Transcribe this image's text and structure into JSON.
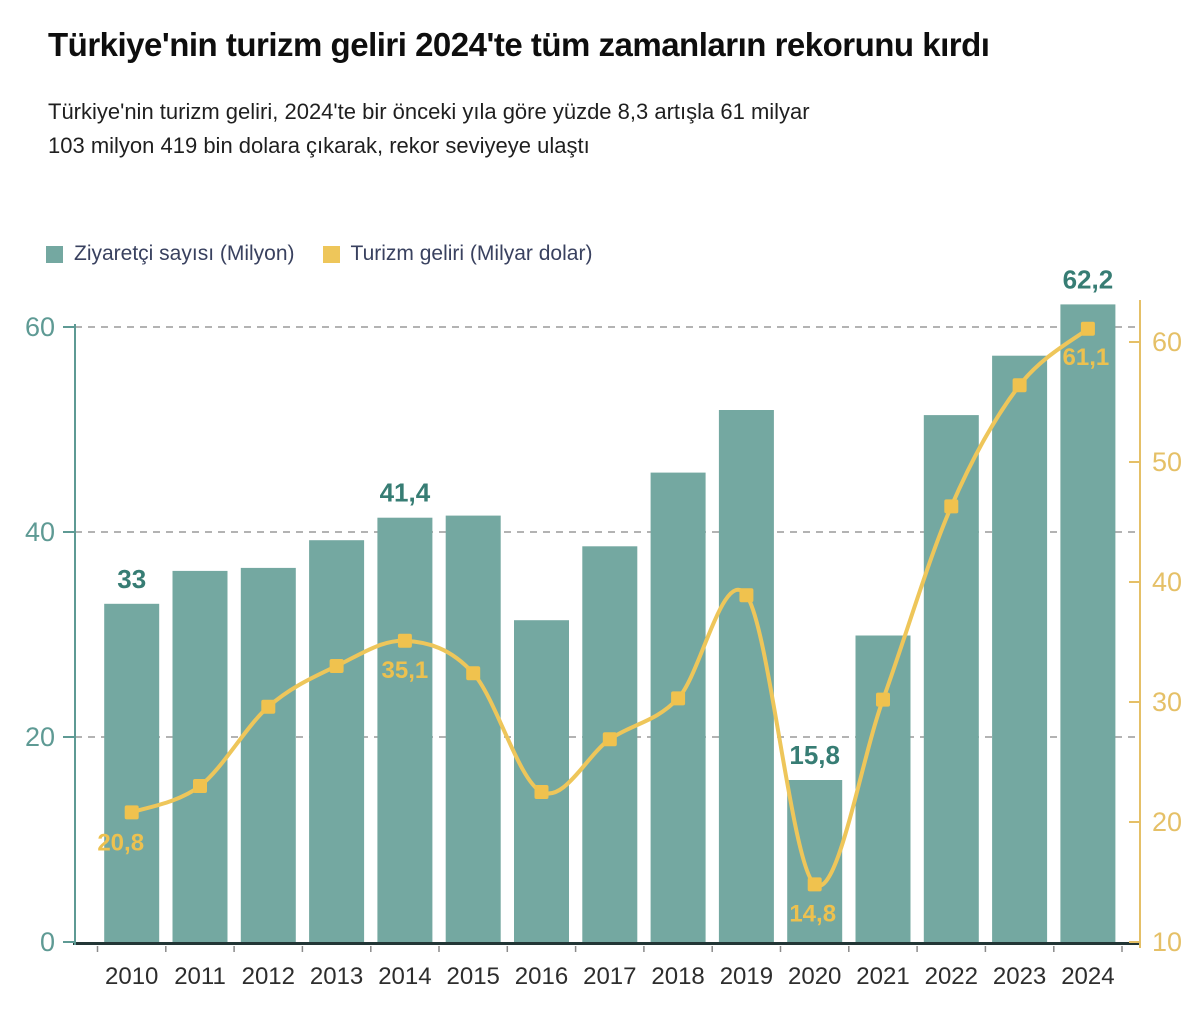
{
  "header": {
    "title": "Türkiye'nin turizm geliri 2024'te tüm zamanların rekorunu kırdı",
    "subtitle": "Türkiye'nin turizm geliri, 2024'te bir önceki yıla göre yüzde 8,3 artışla 61 milyar\n103 milyon 419 bin dolara çıkarak, rekor seviyeye ulaştı"
  },
  "legend": {
    "items": [
      {
        "label": "Ziyaretçi sayısı (Milyon)",
        "swatch": "bar"
      },
      {
        "label": "Turizm geliri (Milyar dolar)",
        "swatch": "line"
      }
    ]
  },
  "colors": {
    "bar": "#74a8a1",
    "bar_label": "#377d74",
    "line": "#eec65a",
    "marker": "#f0c24e",
    "line_label": "#edc14f",
    "left_axis": "#5e9a94",
    "left_axis_label": "#5e9a94",
    "right_axis": "#e5c067",
    "right_axis_label": "#e5c067",
    "grid": "#9a9a9a",
    "baseline": "#233636",
    "x_tick": "#8a8a8a",
    "year_label": "#2d2d2d",
    "title": "#0e0e0e",
    "subtitle": "#1f1f1f",
    "legend_text": "#39415f"
  },
  "chart_data": {
    "type": "combo-bar-line",
    "categories": [
      "2010",
      "2011",
      "2012",
      "2013",
      "2014",
      "2015",
      "2016",
      "2017",
      "2018",
      "2019",
      "2020",
      "2021",
      "2022",
      "2023",
      "2024"
    ],
    "series": [
      {
        "name": "Ziyaretçi sayısı (Milyon)",
        "type": "bar",
        "axis": "left",
        "values": [
          33,
          36.2,
          36.5,
          39.2,
          41.4,
          41.6,
          31.4,
          38.6,
          45.8,
          51.9,
          15.8,
          29.9,
          51.4,
          57.2,
          62.2
        ],
        "callouts": {
          "2010": "33",
          "2014": "41,4",
          "2020": "15,8",
          "2024": "62,2"
        }
      },
      {
        "name": "Turizm geliri (Milyar dolar)",
        "type": "line",
        "axis": "right",
        "values": [
          20.8,
          23.0,
          29.6,
          33.0,
          35.1,
          32.4,
          22.5,
          26.9,
          30.3,
          38.9,
          14.8,
          30.2,
          46.3,
          56.4,
          61.1
        ],
        "callouts": {
          "2010": "20,8",
          "2014": "35,1",
          "2020": "14,8",
          "2024": "61,1"
        }
      }
    ],
    "left_axis": {
      "ticks": [
        0,
        20,
        40,
        60
      ],
      "range": [
        0,
        63
      ]
    },
    "right_axis": {
      "ticks": [
        10,
        20,
        30,
        40,
        50,
        60
      ],
      "range": [
        10,
        63
      ]
    },
    "gridlines": [
      20,
      40,
      60
    ],
    "grid_style": "dashed",
    "legend_position": "top-left",
    "xlabel": "",
    "ylabel_left": "Ziyaretçi sayısı (Milyon)",
    "ylabel_right": "Turizm geliri (Milyar dolar)"
  }
}
